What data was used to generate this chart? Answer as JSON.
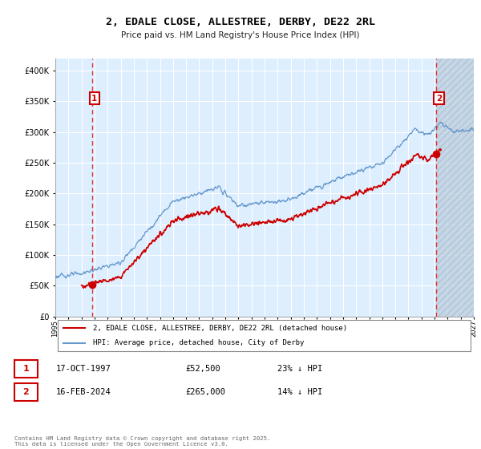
{
  "title": "2, EDALE CLOSE, ALLESTREE, DERBY, DE22 2RL",
  "subtitle": "Price paid vs. HM Land Registry's House Price Index (HPI)",
  "legend_property": "2, EDALE CLOSE, ALLESTREE, DERBY, DE22 2RL (detached house)",
  "legend_hpi": "HPI: Average price, detached house, City of Derby",
  "annotation1_date": "17-OCT-1997",
  "annotation1_price": "£52,500",
  "annotation1_hpi": "23% ↓ HPI",
  "annotation2_date": "16-FEB-2024",
  "annotation2_price": "£265,000",
  "annotation2_hpi": "14% ↓ HPI",
  "footer": "Contains HM Land Registry data © Crown copyright and database right 2025.\nThis data is licensed under the Open Government Licence v3.0.",
  "property_color": "#cc0000",
  "hpi_color": "#6699cc",
  "dashed_line_color": "#dd3333",
  "annotation_box_color": "#cc0000",
  "background_color": "#ffffff",
  "plot_bg_color": "#ddeeff",
  "grid_color": "#ffffff",
  "hatch_color": "#bbccdd",
  "ylim": [
    0,
    420000
  ],
  "yticks": [
    0,
    50000,
    100000,
    150000,
    200000,
    250000,
    300000,
    350000,
    400000
  ],
  "sale1_year": 1997.79,
  "sale1_price": 52500,
  "sale2_year": 2024.12,
  "sale2_price": 265000,
  "xstart": 1995,
  "xend": 2027
}
